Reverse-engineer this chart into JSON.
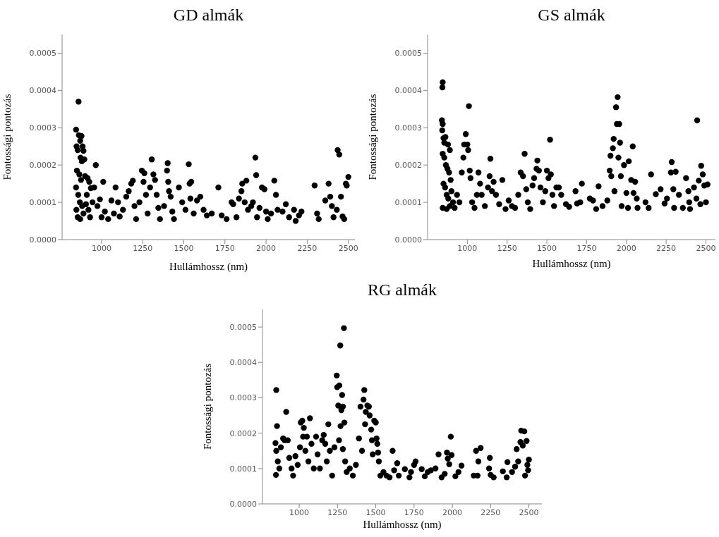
{
  "chart_data": [
    {
      "type": "scatter",
      "title": "GD almák",
      "xlabel": "Hullámhossz (nm)",
      "ylabel": "Fontossági pontozás",
      "marker": "circle",
      "xlim": [
        760,
        2540
      ],
      "ylim": [
        0,
        0.00055
      ],
      "xticks": [
        1000,
        1250,
        1500,
        1750,
        2000,
        2250,
        2500
      ],
      "yticks": [
        {
          "value": 0,
          "label": "0.0000"
        },
        {
          "value": 0.0001,
          "label": "0.0001"
        },
        {
          "value": 0.0002,
          "label": "0.0002"
        },
        {
          "value": 0.0003,
          "label": "0.0003"
        },
        {
          "value": 0.0004,
          "label": "0.0004"
        },
        {
          "value": 0.0005,
          "label": "0.0005"
        }
      ],
      "series": [
        {
          "color": "#000000",
          "x": [
            860,
            845,
            848,
            855,
            862,
            870,
            878,
            885,
            890,
            872,
            880,
            895,
            850,
            865,
            875,
            845,
            858,
            868,
            882,
            847,
            855,
            870,
            890,
            900,
            915,
            925,
            935,
            910,
            905,
            920,
            930,
            945,
            955,
            965,
            975,
            990,
            1000,
            1010,
            1020,
            1040,
            1060,
            1075,
            1085,
            1100,
            1110,
            1130,
            1150,
            1165,
            1180,
            1190,
            1200,
            1210,
            1230,
            1245,
            1255,
            1260,
            1270,
            1280,
            1295,
            1305,
            1315,
            1325,
            1335,
            1345,
            1355,
            1380,
            1398,
            1402,
            1405,
            1410,
            1420,
            1430,
            1440,
            1470,
            1490,
            1510,
            1530,
            1535,
            1545,
            1540,
            1560,
            1580,
            1600,
            1620,
            1640,
            1670,
            1710,
            1730,
            1760,
            1790,
            1800,
            1820,
            1835,
            1850,
            1855,
            1870,
            1880,
            1890,
            1910,
            1920,
            1935,
            1940,
            1945,
            1960,
            1975,
            1990,
            2000,
            2010,
            2030,
            2050,
            2060,
            2070,
            2100,
            2120,
            2140,
            2170,
            2180,
            2200,
            2215,
            2295,
            2310,
            2320,
            2360,
            2380,
            2390,
            2400,
            2410,
            2430,
            2435,
            2445,
            2455,
            2465,
            2475,
            2485,
            2490,
            2500
          ],
          "values": [
            0.00037,
            0.000295,
            0.00025,
            0.00024,
            0.00028,
            0.000265,
            0.000278,
            0.00025,
            0.000238,
            0.00022,
            0.00021,
            0.000215,
            0.000185,
            0.000175,
            0.00016,
            0.00014,
            0.00012,
            0.0001,
            9e-05,
            8e-05,
            6e-05,
            5.5e-05,
            7e-05,
            0.00017,
            0.000165,
            0.000155,
            0.000138,
            0.00012,
            9.5e-05,
            8e-05,
            6e-05,
            0.0001,
            0.00014,
            0.0002,
            9e-05,
            0.000108,
            6e-05,
            0.000155,
            7.5e-05,
            5.5e-05,
            0.000105,
            7e-05,
            0.00014,
            0.0001,
            6.2e-05,
            8e-05,
            0.000115,
            0.00013,
            0.00015,
            0.000158,
            9e-05,
            5.5e-05,
            0.0001,
            0.000185,
            0.000155,
            0.000178,
            0.00012,
            7e-05,
            0.00014,
            0.000215,
            0.000175,
            0.00016,
            0.00012,
            8.5e-05,
            5.5e-05,
            9e-05,
            0.000185,
            0.000205,
            0.000155,
            0.00013,
            0.000115,
            7.5e-05,
            5.5e-05,
            0.00014,
            0.0001,
            8e-05,
            0.000202,
            0.00015,
            0.000155,
            0.00011,
            7e-05,
            0.000105,
            0.000115,
            8e-05,
            6.5e-05,
            7e-05,
            0.00014,
            6.5e-05,
            5.5e-05,
            0.0001,
            9.5e-05,
            6e-05,
            0.00011,
            0.00013,
            0.00015,
            0.0001,
            0.000158,
            8e-05,
            9e-05,
            0.0001,
            0.00022,
            0.000173,
            6e-05,
            8.5e-05,
            0.00014,
            0.000135,
            7.5e-05,
            5.5e-05,
            7e-05,
            0.000158,
            0.00012,
            8e-05,
            7.5e-05,
            9.5e-05,
            6e-05,
            8e-05,
            5e-05,
            6.5e-05,
            7.5e-05,
            0.000145,
            7e-05,
            5.5e-05,
            0.000105,
            0.00015,
            0.000115,
            9e-05,
            6e-05,
            8e-05,
            0.00024,
            0.000228,
            0.000115,
            6.2e-05,
            5.5e-05,
            0.00015,
            0.000145,
            0.000168
          ]
        }
      ]
    },
    {
      "type": "scatter",
      "title": "GS almák",
      "xlabel": "Hullámhossz (nm)",
      "ylabel": "Fontossági pontozás",
      "marker": "circle",
      "xlim": [
        750,
        2560
      ],
      "ylim": [
        0,
        0.00055
      ],
      "xticks": [
        1000,
        1250,
        1500,
        1750,
        2000,
        2250,
        2500
      ],
      "yticks": [
        {
          "value": 0,
          "label": "0.0000"
        },
        {
          "value": 0.0001,
          "label": "0.0001"
        },
        {
          "value": 0.0002,
          "label": "0.0002"
        },
        {
          "value": 0.0003,
          "label": "0.0003"
        },
        {
          "value": 0.0004,
          "label": "0.0004"
        },
        {
          "value": 0.0005,
          "label": "0.0005"
        }
      ],
      "series": [
        {
          "color": "#000000",
          "x": [
            845,
            843,
            840,
            845,
            842,
            850,
            855,
            862,
            878,
            890,
            845,
            855,
            865,
            875,
            885,
            895,
            850,
            860,
            870,
            880,
            890,
            900,
            910,
            845,
            870,
            920,
            935,
            950,
            965,
            975,
            980,
            990,
            1000,
            1005,
            1010,
            1015,
            1020,
            1030,
            1045,
            1060,
            1070,
            1080,
            1090,
            1110,
            1130,
            1140,
            1145,
            1155,
            1165,
            1180,
            1200,
            1220,
            1240,
            1260,
            1280,
            1300,
            1320,
            1335,
            1350,
            1360,
            1370,
            1380,
            1395,
            1410,
            1420,
            1435,
            1440,
            1450,
            1460,
            1475,
            1490,
            1500,
            1510,
            1520,
            1525,
            1535,
            1545,
            1560,
            1575,
            1590,
            1620,
            1640,
            1680,
            1690,
            1710,
            1720,
            1770,
            1790,
            1810,
            1825,
            1850,
            1880,
            1895,
            1900,
            1905,
            1915,
            1920,
            1925,
            1935,
            1945,
            1940,
            1955,
            1960,
            1950,
            1965,
            1970,
            1985,
            2000,
            2010,
            2015,
            2030,
            2040,
            2045,
            2055,
            2065,
            2070,
            2120,
            2140,
            2155,
            2185,
            2215,
            2240,
            2255,
            2280,
            2285,
            2295,
            2300,
            2310,
            2330,
            2355,
            2375,
            2390,
            2395,
            2400,
            2425,
            2440,
            2445,
            2455,
            2465,
            2470,
            2480,
            2490,
            2500,
            2510
          ],
          "values": [
            0.000422,
            0.000408,
            0.00032,
            0.00031,
            0.000293,
            0.000272,
            0.00026,
            0.000275,
            0.000255,
            0.00024,
            0.00023,
            0.00022,
            0.0002,
            0.00019,
            0.00018,
            0.00016,
            0.00015,
            0.00014,
            0.00012,
            0.00011,
            9e-05,
            0.00013,
            0.0001,
            8.5e-05,
            8.2e-05,
            8.5e-05,
            0.00012,
            0.0001,
            0.00018,
            0.00022,
            0.000255,
            0.000283,
            0.000255,
            0.00024,
            0.000358,
            0.000185,
            0.000165,
            0.0001,
            8.5e-05,
            0.00012,
            0.00018,
            0.00015,
            0.00012,
            9e-05,
            0.00014,
            0.00017,
            0.000217,
            0.00013,
            0.000155,
            0.00012,
            9.5e-05,
            0.00016,
            8.2e-05,
            0.000105,
            9e-05,
            8.5e-05,
            0.00012,
            0.00018,
            0.00017,
            0.00023,
            0.000135,
            0.0001,
            8.2e-05,
            0.000145,
            0.000165,
            0.00019,
            0.000212,
            0.000185,
            0.00014,
            0.0001,
            0.00013,
            0.000185,
            0.000165,
            0.000268,
            0.000175,
            0.00012,
            9e-05,
            0.00014,
            0.00014,
            0.00012,
            9.5e-05,
            8.8e-05,
            0.00013,
            9.7e-05,
            0.0001,
            0.00015,
            0.00011,
            0.000105,
            8.2e-05,
            0.000143,
            9e-05,
            0.000105,
            0.000185,
            0.000225,
            0.00017,
            0.000245,
            0.00027,
            0.00013,
            0.000355,
            0.000382,
            0.00031,
            0.00031,
            0.00026,
            0.00022,
            0.00017,
            9e-05,
            0.0002,
            0.000125,
            8.5e-05,
            0.00021,
            0.00016,
            0.00025,
            0.000125,
            0.000155,
            0.00011,
            8.5e-05,
            0.0001,
            8.5e-05,
            0.000175,
            0.000122,
            0.000135,
            9.7e-05,
            0.00011,
            0.00018,
            0.000208,
            0.000135,
            8.5e-05,
            0.000182,
            0.00012,
            8.5e-05,
            0.000165,
            0.00013,
            0.0001,
            8.2e-05,
            0.00014,
            0.00011,
            0.00032,
            0.000158,
            9.5e-05,
            0.000198,
            0.000175,
            0.000145,
            0.0001,
            0.000148
          ]
        }
      ]
    },
    {
      "type": "scatter",
      "title": "RG almák",
      "xlabel": "Hullámhossz (nm)",
      "ylabel": "Fontossági pontozás",
      "marker": "circle",
      "xlim": [
        760,
        2585
      ],
      "ylim": [
        0,
        0.00055
      ],
      "xticks": [
        1000,
        1250,
        1500,
        1750,
        2000,
        2250,
        2500
      ],
      "yticks": [
        {
          "value": 0,
          "label": "0.0000"
        },
        {
          "value": 0.0001,
          "label": "0.0001"
        },
        {
          "value": 0.0002,
          "label": "0.0002"
        },
        {
          "value": 0.0003,
          "label": "0.0003"
        },
        {
          "value": 0.0004,
          "label": "0.0004"
        },
        {
          "value": 0.0005,
          "label": "0.0005"
        }
      ],
      "series": [
        {
          "color": "#000000",
          "x": [
            850,
            855,
            845,
            850,
            860,
            848,
            870,
            880,
            895,
            905,
            915,
            925,
            935,
            950,
            960,
            975,
            990,
            1005,
            1010,
            1020,
            1025,
            1030,
            1040,
            1050,
            1060,
            1070,
            1080,
            1095,
            1110,
            1120,
            1135,
            1150,
            1160,
            1170,
            1180,
            1190,
            1200,
            1215,
            1230,
            1245,
            1248,
            1255,
            1262,
            1268,
            1275,
            1280,
            1285,
            1292,
            1295,
            1270,
            1260,
            1285,
            1300,
            1310,
            1330,
            1350,
            1370,
            1390,
            1400,
            1410,
            1420,
            1425,
            1430,
            1435,
            1445,
            1455,
            1460,
            1470,
            1475,
            1480,
            1490,
            1500,
            1505,
            1510,
            1515,
            1520,
            1530,
            1550,
            1570,
            1590,
            1610,
            1620,
            1640,
            1650,
            1690,
            1720,
            1730,
            1750,
            1760,
            1800,
            1820,
            1840,
            1860,
            1890,
            1910,
            1930,
            1950,
            1965,
            1970,
            1980,
            1990,
            1995,
            2020,
            2040,
            2060,
            2140,
            2155,
            2165,
            2170,
            2185,
            2240,
            2245,
            2250,
            2270,
            2330,
            2355,
            2360,
            2390,
            2410,
            2420,
            2430,
            2445,
            2450,
            2460,
            2470,
            2475,
            2485,
            2490,
            2495,
            2500
          ],
          "values": [
            0.000322,
            0.00022,
            0.000172,
            0.00015,
            0.00012,
            8.2e-05,
            0.0001,
            0.00016,
            0.000185,
            0.00018,
            0.00026,
            0.00018,
            0.00013,
            0.0001,
            8e-05,
            0.000135,
            0.00011,
            0.00016,
            0.00023,
            0.000235,
            0.00019,
            0.000215,
            0.00015,
            0.00019,
            0.00012,
            0.000242,
            0.00017,
            0.0001,
            0.00019,
            0.00014,
            0.0001,
            0.00018,
            0.000195,
            0.00017,
            0.00012,
            0.000225,
            0.00015,
            8e-05,
            0.00016,
            0.000363,
            0.00033,
            0.000278,
            0.000335,
            0.000448,
            0.000265,
            0.000308,
            0.000275,
            0.000497,
            0.00023,
            0.00022,
            0.00018,
            0.000155,
            0.00012,
            9e-05,
            0.0001,
            8e-05,
            0.00011,
            0.000185,
            0.000275,
            0.00015,
            0.000295,
            0.000322,
            0.000225,
            0.00026,
            0.000278,
            0.000275,
            0.00025,
            0.00021,
            0.00018,
            0.00014,
            0.000235,
            0.00023,
            0.000185,
            0.00017,
            0.000145,
            0.00012,
            8e-05,
            9e-05,
            8e-05,
            7.5e-05,
            0.00015,
            9.5e-05,
            0.000115,
            8e-05,
            9.8e-05,
            7.5e-05,
            9e-05,
            0.00011,
            0.00012,
            9.8e-05,
            7.8e-05,
            9e-05,
            9.5e-05,
            0.0001,
            0.00014,
            7.5e-05,
            8.5e-05,
            0.000145,
            0.000128,
            0.000112,
            0.00019,
            0.000138,
            7.8e-05,
            9e-05,
            0.000108,
            8e-05,
            0.00015,
            8e-05,
            0.00012,
            0.000158,
            0.0001,
            0.00013,
            8.2e-05,
            7.5e-05,
            9.2e-05,
            7.5e-05,
            0.000118,
            9e-05,
            0.000105,
            0.000155,
            0.00012,
            0.000175,
            0.000207,
            0.000165,
            0.000205,
            8e-05,
            0.000178,
            0.00011,
            9.5e-05,
            0.000125
          ]
        }
      ]
    }
  ]
}
